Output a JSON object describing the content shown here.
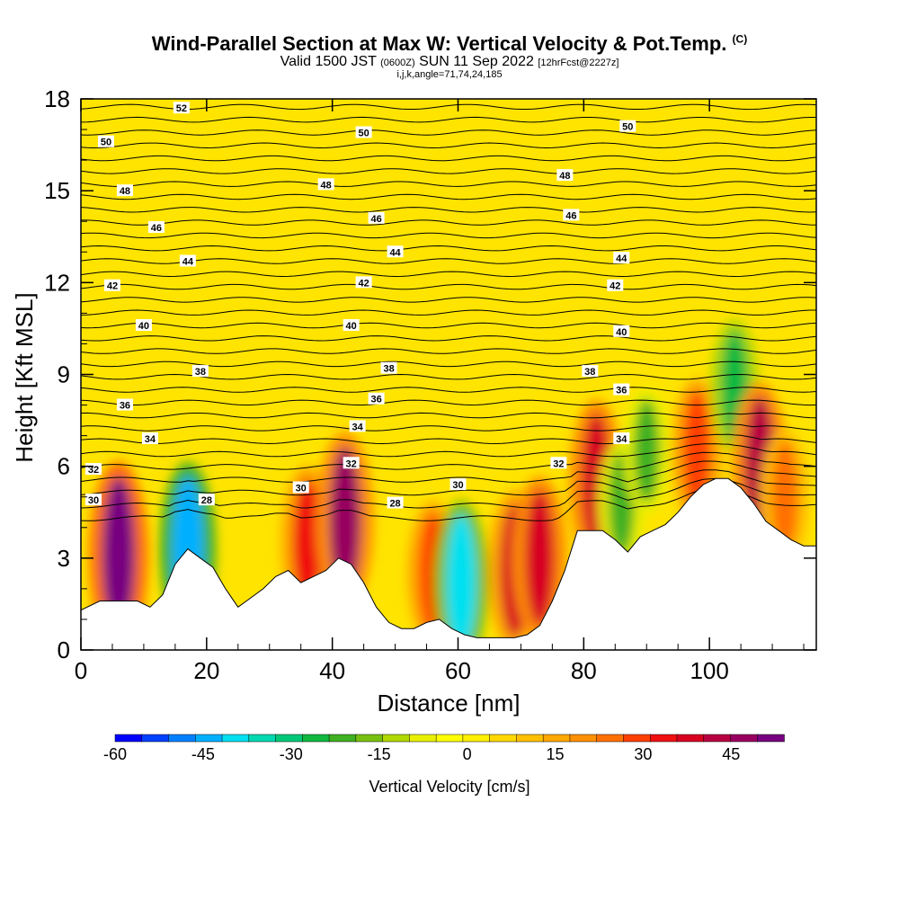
{
  "chart_data": {
    "type": "heatmap",
    "title": "Wind-Parallel Section at Max W: Vertical Velocity & Pot.Temp.",
    "title_mark": "(C)",
    "subtitle_main": "Valid 1500 JST",
    "subtitle_z": "(0600Z)",
    "subtitle_date": "SUN 11 Sep 2022",
    "subtitle_fcst": "[12hrFcst@2227z]",
    "subtitle2": "i,j,k,angle=71,74,24,185",
    "xlabel": "Distance [nm]",
    "ylabel": "Height [Kft MSL]",
    "xlim": [
      0,
      117
    ],
    "ylim": [
      0,
      18
    ],
    "x_ticks": [
      0,
      20,
      40,
      60,
      80,
      100
    ],
    "y_ticks": [
      0,
      3,
      6,
      9,
      12,
      15,
      18
    ],
    "colorbar": {
      "title": "Vertical Velocity [cm/s]",
      "range": [
        -60,
        54
      ],
      "tick_labels": [
        "-60",
        "-45",
        "-30",
        "-15",
        "0",
        "15",
        "30",
        "45"
      ],
      "tick_values": [
        -60,
        -45,
        -30,
        -15,
        0,
        15,
        30,
        45
      ],
      "colors": [
        "#0000ff",
        "#0040ff",
        "#0080ff",
        "#00b0ff",
        "#00e0f0",
        "#00d8b0",
        "#00c878",
        "#10b840",
        "#40b020",
        "#78c010",
        "#b0d800",
        "#e8f000",
        "#ffff00",
        "#fff000",
        "#ffd800",
        "#ffc000",
        "#ffa800",
        "#ff9000",
        "#ff7000",
        "#ff4000",
        "#f01010",
        "#d80020",
        "#b80040",
        "#980060",
        "#780080"
      ]
    },
    "terrain": [
      [
        0,
        1.3
      ],
      [
        3,
        1.6
      ],
      [
        6,
        1.6
      ],
      [
        9,
        1.6
      ],
      [
        11,
        1.4
      ],
      [
        13,
        1.8
      ],
      [
        15,
        2.8
      ],
      [
        17,
        3.3
      ],
      [
        19,
        3.0
      ],
      [
        21,
        2.7
      ],
      [
        23,
        2.0
      ],
      [
        25,
        1.4
      ],
      [
        27,
        1.7
      ],
      [
        29,
        2.0
      ],
      [
        31,
        2.4
      ],
      [
        33,
        2.6
      ],
      [
        35,
        2.2
      ],
      [
        37,
        2.4
      ],
      [
        39,
        2.6
      ],
      [
        41,
        3.0
      ],
      [
        43,
        2.8
      ],
      [
        45,
        2.2
      ],
      [
        47,
        1.4
      ],
      [
        49,
        0.9
      ],
      [
        51,
        0.7
      ],
      [
        53,
        0.7
      ],
      [
        55,
        0.9
      ],
      [
        57,
        1.0
      ],
      [
        59,
        0.7
      ],
      [
        61,
        0.5
      ],
      [
        63,
        0.4
      ],
      [
        65,
        0.4
      ],
      [
        67,
        0.4
      ],
      [
        69,
        0.4
      ],
      [
        71,
        0.5
      ],
      [
        73,
        0.8
      ],
      [
        75,
        1.6
      ],
      [
        77,
        2.6
      ],
      [
        79,
        3.9
      ],
      [
        81,
        3.9
      ],
      [
        83,
        3.9
      ],
      [
        85,
        3.6
      ],
      [
        87,
        3.2
      ],
      [
        89,
        3.7
      ],
      [
        91,
        3.9
      ],
      [
        93,
        4.1
      ],
      [
        95,
        4.5
      ],
      [
        97,
        5.0
      ],
      [
        99,
        5.4
      ],
      [
        101,
        5.6
      ],
      [
        103,
        5.6
      ],
      [
        105,
        5.3
      ],
      [
        107,
        4.8
      ],
      [
        109,
        4.2
      ],
      [
        111,
        3.9
      ],
      [
        113,
        3.6
      ],
      [
        115,
        3.4
      ],
      [
        117,
        3.4
      ]
    ],
    "w_cells": [
      {
        "x": 6,
        "z": 3.1,
        "w": 52
      },
      {
        "x": 17,
        "z": 3.3,
        "w": -45
      },
      {
        "x": 36,
        "z": 3.5,
        "w": 35
      },
      {
        "x": 42,
        "z": 4.2,
        "w": 48
      },
      {
        "x": 56,
        "z": 2.5,
        "w": 30
      },
      {
        "x": 60.5,
        "z": 2.2,
        "w": -40
      },
      {
        "x": 69,
        "z": 2.6,
        "w": 38
      },
      {
        "x": 73,
        "z": 3.0,
        "w": 40
      },
      {
        "x": 82,
        "z": 5.5,
        "w": 40
      },
      {
        "x": 86,
        "z": 4.8,
        "w": -20
      },
      {
        "x": 90,
        "z": 6.5,
        "w": -20
      },
      {
        "x": 98,
        "z": 6.5,
        "w": 30
      },
      {
        "x": 104,
        "z": 8.6,
        "w": -25
      },
      {
        "x": 108,
        "z": 6.0,
        "w": 42
      },
      {
        "x": 112,
        "z": 5.0,
        "w": 25
      }
    ],
    "theta_labels": [
      {
        "x": 16,
        "z": 17.7,
        "v": "52"
      },
      {
        "x": 4,
        "z": 16.6,
        "v": "50"
      },
      {
        "x": 45,
        "z": 16.9,
        "v": "50"
      },
      {
        "x": 87,
        "z": 17.1,
        "v": "50"
      },
      {
        "x": 7,
        "z": 15.0,
        "v": "48"
      },
      {
        "x": 39,
        "z": 15.2,
        "v": "48"
      },
      {
        "x": 77,
        "z": 15.5,
        "v": "48"
      },
      {
        "x": 12,
        "z": 13.8,
        "v": "46"
      },
      {
        "x": 47,
        "z": 14.1,
        "v": "46"
      },
      {
        "x": 78,
        "z": 14.2,
        "v": "46"
      },
      {
        "x": 17,
        "z": 12.7,
        "v": "44"
      },
      {
        "x": 50,
        "z": 13.0,
        "v": "44"
      },
      {
        "x": 86,
        "z": 12.8,
        "v": "44"
      },
      {
        "x": 5,
        "z": 11.9,
        "v": "42"
      },
      {
        "x": 45,
        "z": 12.0,
        "v": "42"
      },
      {
        "x": 85,
        "z": 11.9,
        "v": "42"
      },
      {
        "x": 10,
        "z": 10.6,
        "v": "40"
      },
      {
        "x": 43,
        "z": 10.6,
        "v": "40"
      },
      {
        "x": 86,
        "z": 10.4,
        "v": "40"
      },
      {
        "x": 19,
        "z": 9.1,
        "v": "38"
      },
      {
        "x": 49,
        "z": 9.2,
        "v": "38"
      },
      {
        "x": 81,
        "z": 9.1,
        "v": "38"
      },
      {
        "x": 7,
        "z": 8.0,
        "v": "36"
      },
      {
        "x": 47,
        "z": 8.2,
        "v": "36"
      },
      {
        "x": 86,
        "z": 8.5,
        "v": "36"
      },
      {
        "x": 11,
        "z": 6.9,
        "v": "34"
      },
      {
        "x": 44,
        "z": 7.3,
        "v": "34"
      },
      {
        "x": 86,
        "z": 6.9,
        "v": "34"
      },
      {
        "x": 2,
        "z": 5.9,
        "v": "32"
      },
      {
        "x": 43,
        "z": 6.1,
        "v": "32"
      },
      {
        "x": 76,
        "z": 6.1,
        "v": "32"
      },
      {
        "x": 2,
        "z": 4.9,
        "v": "30"
      },
      {
        "x": 35,
        "z": 5.3,
        "v": "30"
      },
      {
        "x": 60,
        "z": 5.4,
        "v": "30"
      },
      {
        "x": 20,
        "z": 4.9,
        "v": "28"
      },
      {
        "x": 50,
        "z": 4.8,
        "v": "28"
      }
    ]
  }
}
